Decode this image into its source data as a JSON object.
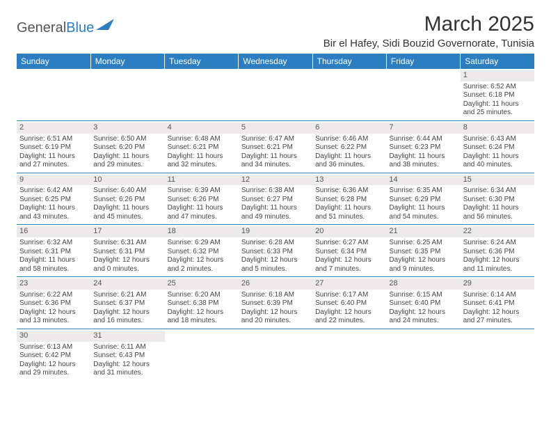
{
  "brand": {
    "part1": "General",
    "part2": "Blue"
  },
  "title": "March 2025",
  "location": "Bir el Hafey, Sidi Bouzid Governorate, Tunisia",
  "colors": {
    "header_bg": "#2b7ec1",
    "header_text": "#ffffff",
    "daynum_bg": "#eceaea",
    "rule": "#2b7ec1",
    "text": "#444444"
  },
  "day_headers": [
    "Sunday",
    "Monday",
    "Tuesday",
    "Wednesday",
    "Thursday",
    "Friday",
    "Saturday"
  ],
  "weeks": [
    [
      {
        "n": "",
        "sr": "",
        "ss": "",
        "dl": ""
      },
      {
        "n": "",
        "sr": "",
        "ss": "",
        "dl": ""
      },
      {
        "n": "",
        "sr": "",
        "ss": "",
        "dl": ""
      },
      {
        "n": "",
        "sr": "",
        "ss": "",
        "dl": ""
      },
      {
        "n": "",
        "sr": "",
        "ss": "",
        "dl": ""
      },
      {
        "n": "",
        "sr": "",
        "ss": "",
        "dl": ""
      },
      {
        "n": "1",
        "sr": "Sunrise: 6:52 AM",
        "ss": "Sunset: 6:18 PM",
        "dl": "Daylight: 11 hours and 25 minutes."
      }
    ],
    [
      {
        "n": "2",
        "sr": "Sunrise: 6:51 AM",
        "ss": "Sunset: 6:19 PM",
        "dl": "Daylight: 11 hours and 27 minutes."
      },
      {
        "n": "3",
        "sr": "Sunrise: 6:50 AM",
        "ss": "Sunset: 6:20 PM",
        "dl": "Daylight: 11 hours and 29 minutes."
      },
      {
        "n": "4",
        "sr": "Sunrise: 6:48 AM",
        "ss": "Sunset: 6:21 PM",
        "dl": "Daylight: 11 hours and 32 minutes."
      },
      {
        "n": "5",
        "sr": "Sunrise: 6:47 AM",
        "ss": "Sunset: 6:21 PM",
        "dl": "Daylight: 11 hours and 34 minutes."
      },
      {
        "n": "6",
        "sr": "Sunrise: 6:46 AM",
        "ss": "Sunset: 6:22 PM",
        "dl": "Daylight: 11 hours and 36 minutes."
      },
      {
        "n": "7",
        "sr": "Sunrise: 6:44 AM",
        "ss": "Sunset: 6:23 PM",
        "dl": "Daylight: 11 hours and 38 minutes."
      },
      {
        "n": "8",
        "sr": "Sunrise: 6:43 AM",
        "ss": "Sunset: 6:24 PM",
        "dl": "Daylight: 11 hours and 40 minutes."
      }
    ],
    [
      {
        "n": "9",
        "sr": "Sunrise: 6:42 AM",
        "ss": "Sunset: 6:25 PM",
        "dl": "Daylight: 11 hours and 43 minutes."
      },
      {
        "n": "10",
        "sr": "Sunrise: 6:40 AM",
        "ss": "Sunset: 6:26 PM",
        "dl": "Daylight: 11 hours and 45 minutes."
      },
      {
        "n": "11",
        "sr": "Sunrise: 6:39 AM",
        "ss": "Sunset: 6:26 PM",
        "dl": "Daylight: 11 hours and 47 minutes."
      },
      {
        "n": "12",
        "sr": "Sunrise: 6:38 AM",
        "ss": "Sunset: 6:27 PM",
        "dl": "Daylight: 11 hours and 49 minutes."
      },
      {
        "n": "13",
        "sr": "Sunrise: 6:36 AM",
        "ss": "Sunset: 6:28 PM",
        "dl": "Daylight: 11 hours and 51 minutes."
      },
      {
        "n": "14",
        "sr": "Sunrise: 6:35 AM",
        "ss": "Sunset: 6:29 PM",
        "dl": "Daylight: 11 hours and 54 minutes."
      },
      {
        "n": "15",
        "sr": "Sunrise: 6:34 AM",
        "ss": "Sunset: 6:30 PM",
        "dl": "Daylight: 11 hours and 56 minutes."
      }
    ],
    [
      {
        "n": "16",
        "sr": "Sunrise: 6:32 AM",
        "ss": "Sunset: 6:31 PM",
        "dl": "Daylight: 11 hours and 58 minutes."
      },
      {
        "n": "17",
        "sr": "Sunrise: 6:31 AM",
        "ss": "Sunset: 6:31 PM",
        "dl": "Daylight: 12 hours and 0 minutes."
      },
      {
        "n": "18",
        "sr": "Sunrise: 6:29 AM",
        "ss": "Sunset: 6:32 PM",
        "dl": "Daylight: 12 hours and 2 minutes."
      },
      {
        "n": "19",
        "sr": "Sunrise: 6:28 AM",
        "ss": "Sunset: 6:33 PM",
        "dl": "Daylight: 12 hours and 5 minutes."
      },
      {
        "n": "20",
        "sr": "Sunrise: 6:27 AM",
        "ss": "Sunset: 6:34 PM",
        "dl": "Daylight: 12 hours and 7 minutes."
      },
      {
        "n": "21",
        "sr": "Sunrise: 6:25 AM",
        "ss": "Sunset: 6:35 PM",
        "dl": "Daylight: 12 hours and 9 minutes."
      },
      {
        "n": "22",
        "sr": "Sunrise: 6:24 AM",
        "ss": "Sunset: 6:36 PM",
        "dl": "Daylight: 12 hours and 11 minutes."
      }
    ],
    [
      {
        "n": "23",
        "sr": "Sunrise: 6:22 AM",
        "ss": "Sunset: 6:36 PM",
        "dl": "Daylight: 12 hours and 13 minutes."
      },
      {
        "n": "24",
        "sr": "Sunrise: 6:21 AM",
        "ss": "Sunset: 6:37 PM",
        "dl": "Daylight: 12 hours and 16 minutes."
      },
      {
        "n": "25",
        "sr": "Sunrise: 6:20 AM",
        "ss": "Sunset: 6:38 PM",
        "dl": "Daylight: 12 hours and 18 minutes."
      },
      {
        "n": "26",
        "sr": "Sunrise: 6:18 AM",
        "ss": "Sunset: 6:39 PM",
        "dl": "Daylight: 12 hours and 20 minutes."
      },
      {
        "n": "27",
        "sr": "Sunrise: 6:17 AM",
        "ss": "Sunset: 6:40 PM",
        "dl": "Daylight: 12 hours and 22 minutes."
      },
      {
        "n": "28",
        "sr": "Sunrise: 6:15 AM",
        "ss": "Sunset: 6:40 PM",
        "dl": "Daylight: 12 hours and 24 minutes."
      },
      {
        "n": "29",
        "sr": "Sunrise: 6:14 AM",
        "ss": "Sunset: 6:41 PM",
        "dl": "Daylight: 12 hours and 27 minutes."
      }
    ],
    [
      {
        "n": "30",
        "sr": "Sunrise: 6:13 AM",
        "ss": "Sunset: 6:42 PM",
        "dl": "Daylight: 12 hours and 29 minutes."
      },
      {
        "n": "31",
        "sr": "Sunrise: 6:11 AM",
        "ss": "Sunset: 6:43 PM",
        "dl": "Daylight: 12 hours and 31 minutes."
      },
      {
        "n": "",
        "sr": "",
        "ss": "",
        "dl": ""
      },
      {
        "n": "",
        "sr": "",
        "ss": "",
        "dl": ""
      },
      {
        "n": "",
        "sr": "",
        "ss": "",
        "dl": ""
      },
      {
        "n": "",
        "sr": "",
        "ss": "",
        "dl": ""
      },
      {
        "n": "",
        "sr": "",
        "ss": "",
        "dl": ""
      }
    ]
  ]
}
